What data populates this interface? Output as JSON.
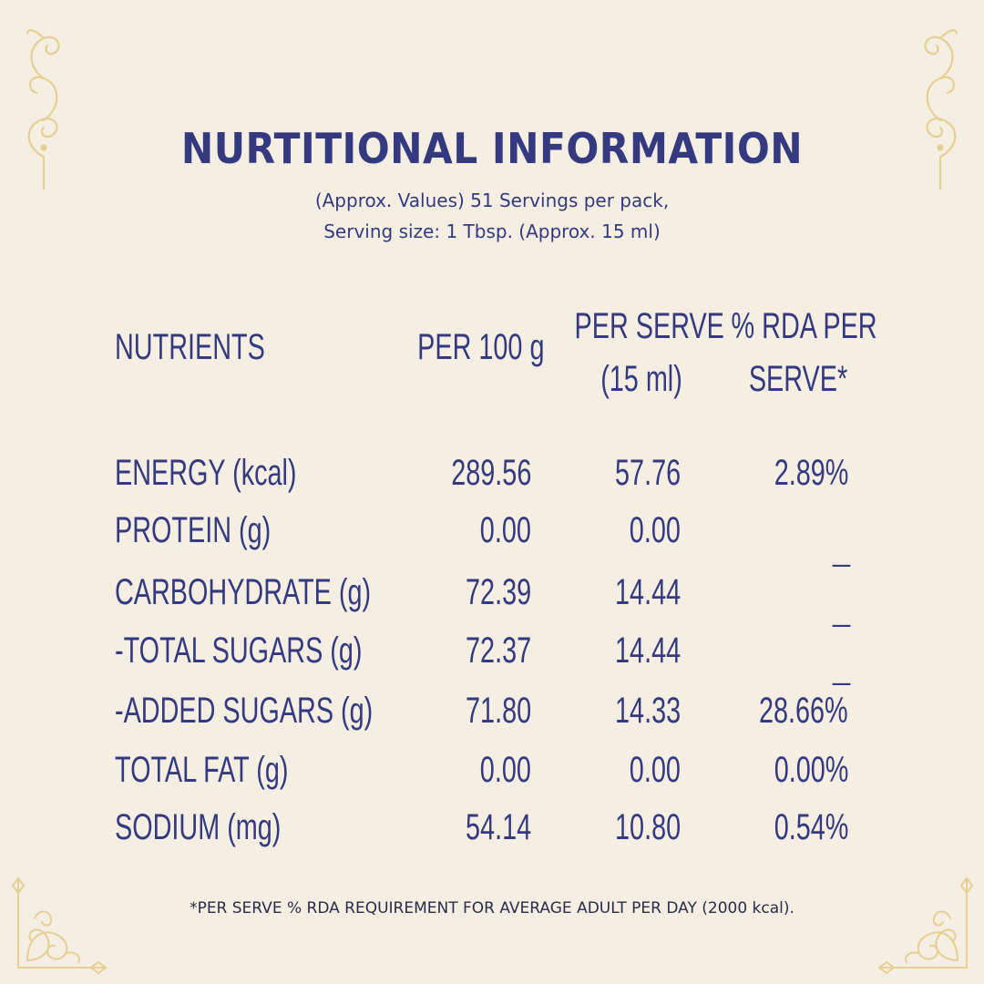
{
  "title": "NURTITIONAL INFORMATION",
  "subtitle_line1": "(Approx. Values) 51 Servings per pack,",
  "subtitle_line2": "Serving size: 1 Tbsp. (Approx. 15 ml)",
  "table": {
    "headers": {
      "nutrients": "NUTRIENTS",
      "per100": "PER 100 g",
      "per_serve_line1": "PER SERVE",
      "per_serve_line2": "(15 ml)",
      "rda_line1": "% RDA PER",
      "rda_line2": "SERVE*"
    },
    "rows": [
      {
        "name": "ENERGY (kcal)",
        "per100": "289.56",
        "per_serve": "57.76",
        "rda": "2.89%"
      },
      {
        "name": "PROTEIN (g)",
        "per100": "0.00",
        "per_serve": "0.00",
        "rda": "_"
      },
      {
        "name": "CARBOHYDRATE (g)",
        "per100": "72.39",
        "per_serve": "14.44",
        "rda": "_"
      },
      {
        "name": "-TOTAL SUGARS (g)",
        "per100": "72.37",
        "per_serve": "14.44",
        "rda": "_"
      },
      {
        "name": "-ADDED SUGARS (g)",
        "per100": "71.80",
        "per_serve": "14.33",
        "rda": "28.66%"
      },
      {
        "name": "TOTAL FAT (g)",
        "per100": "0.00",
        "per_serve": "0.00",
        "rda": "0.00%"
      },
      {
        "name": "SODIUM (mg)",
        "per100": "54.14",
        "per_serve": "10.80",
        "rda": "0.54%"
      }
    ]
  },
  "footnote": "*PER SERVE % RDA REQUIREMENT FOR AVERAGE ADULT PER DAY (2000 kcal).",
  "colors": {
    "background": "#f4efe2",
    "text": "#353a80",
    "ornament": "#e5cf92"
  },
  "icons": {
    "top_left": "scroll-flourish-icon",
    "top_right": "scroll-flourish-icon",
    "bottom_left": "filigree-corner-icon",
    "bottom_right": "filigree-corner-icon"
  }
}
